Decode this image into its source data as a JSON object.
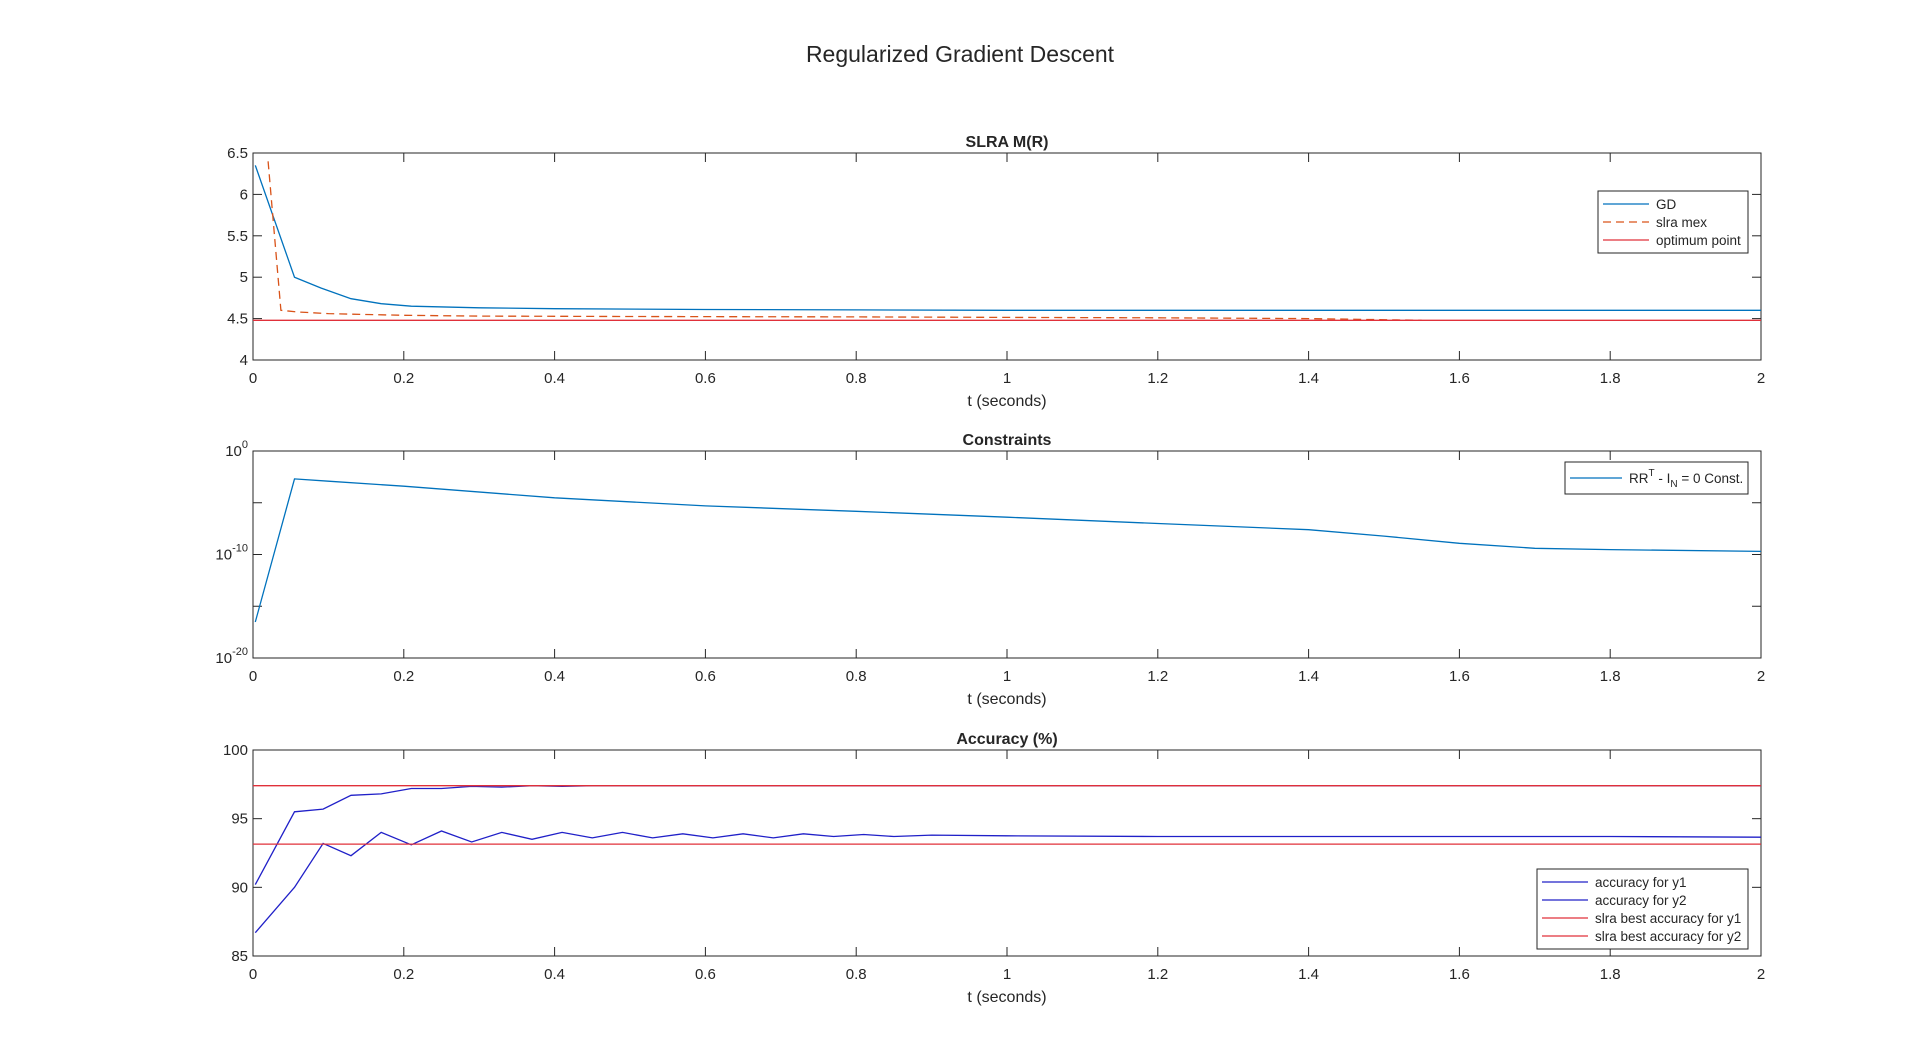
{
  "figure": {
    "suptitle": "Regularized Gradient Descent"
  },
  "chart_data": [
    {
      "type": "line",
      "title": "SLRA M(R)",
      "xlabel": "t (seconds)",
      "ylabel": "",
      "xlim": [
        0,
        2
      ],
      "ylim": [
        4,
        6.5
      ],
      "yscale": "linear",
      "xticks": [
        "0",
        "0.2",
        "0.4",
        "0.6",
        "0.8",
        "1",
        "1.2",
        "1.4",
        "1.6",
        "1.8",
        "2"
      ],
      "yticks": [
        "4",
        "4.5",
        "5",
        "5.5",
        "6",
        "6.5"
      ],
      "legend": {
        "location": "top-right",
        "entries": [
          "GD",
          "slra mex",
          "optimum point"
        ]
      },
      "series": [
        {
          "name": "GD",
          "color": "#0072BD",
          "style": "solid",
          "x": [
            0.003,
            0.055,
            0.09,
            0.13,
            0.17,
            0.21,
            0.3,
            0.4,
            0.6,
            0.8,
            1.0,
            1.2,
            1.4,
            1.6,
            1.8,
            2.0
          ],
          "y": [
            6.35,
            5.0,
            4.87,
            4.74,
            4.68,
            4.65,
            4.63,
            4.62,
            4.61,
            4.605,
            4.6,
            4.6,
            4.6,
            4.6,
            4.6,
            4.6
          ]
        },
        {
          "name": "slra mex",
          "color": "#D95319",
          "style": "dashed",
          "x": [
            0.02,
            0.037,
            0.06,
            0.1,
            0.15,
            0.2,
            0.3,
            0.5,
            0.8,
            1.0,
            1.2,
            1.4,
            1.55
          ],
          "y": [
            6.4,
            4.6,
            4.58,
            4.56,
            4.55,
            4.54,
            4.53,
            4.525,
            4.52,
            4.515,
            4.51,
            4.5,
            4.48
          ]
        },
        {
          "name": "optimum point",
          "color": "#E0303A",
          "style": "solid",
          "x": [
            0,
            2
          ],
          "y": [
            4.48,
            4.48
          ]
        }
      ]
    },
    {
      "type": "line",
      "title": "Constraints",
      "xlabel": "t (seconds)",
      "ylabel": "",
      "xlim": [
        0,
        2
      ],
      "ylim": [
        1e-20,
        1
      ],
      "yscale": "log",
      "xticks": [
        "0",
        "0.2",
        "0.4",
        "0.6",
        "0.8",
        "1",
        "1.2",
        "1.4",
        "1.6",
        "1.8",
        "2"
      ],
      "yticks": [
        {
          "base": "10",
          "exp": "0",
          "value": 1
        },
        {
          "base": "10",
          "exp": "-10",
          "value": 1e-10
        },
        {
          "base": "10",
          "exp": "-20",
          "value": 1e-20
        }
      ],
      "legend": {
        "location": "top-right",
        "entries": [
          {
            "a": "RR",
            "sup": "T",
            "b": " - I",
            "sub": "N",
            "c": " = 0 Const."
          }
        ]
      },
      "series": [
        {
          "name": "RRT - IN = 0 Const.",
          "color": "#0072BD",
          "style": "solid",
          "x": [
            0.003,
            0.055,
            0.1,
            0.2,
            0.4,
            0.6,
            0.8,
            1.0,
            1.2,
            1.4,
            1.5,
            1.6,
            1.7,
            1.8,
            2.0
          ],
          "y": [
            3e-17,
            0.002,
            0.0012,
            0.0004,
            3e-05,
            5e-06,
            1.5e-06,
            4e-07,
            1e-07,
            2.5e-08,
            6e-09,
            1.2e-09,
            4e-10,
            3e-10,
            2e-10
          ]
        }
      ]
    },
    {
      "type": "line",
      "title": "Accuracy (%)",
      "xlabel": "t (seconds)",
      "ylabel": "",
      "xlim": [
        0,
        2
      ],
      "ylim": [
        85,
        100
      ],
      "yscale": "linear",
      "xticks": [
        "0",
        "0.2",
        "0.4",
        "0.6",
        "0.8",
        "1",
        "1.2",
        "1.4",
        "1.6",
        "1.8",
        "2"
      ],
      "yticks": [
        "85",
        "90",
        "95",
        "100"
      ],
      "legend": {
        "location": "bottom-right",
        "entries": [
          "accuracy for y1",
          "accuracy for y2",
          "slra best accuracy for y1",
          "slra best accuracy for y2"
        ]
      },
      "series": [
        {
          "name": "accuracy for y1",
          "color": "#2020C8",
          "style": "solid",
          "x": [
            0.003,
            0.055,
            0.093,
            0.13,
            0.17,
            0.21,
            0.25,
            0.29,
            0.33,
            0.37,
            0.41,
            0.45,
            0.5,
            0.6,
            0.8,
            1.0,
            1.2,
            1.4,
            1.6,
            1.8,
            2.0
          ],
          "y": [
            90.2,
            95.5,
            95.7,
            96.7,
            96.8,
            97.2,
            97.2,
            97.35,
            97.3,
            97.4,
            97.35,
            97.4,
            97.4,
            97.4,
            97.4,
            97.4,
            97.4,
            97.4,
            97.4,
            97.4,
            97.4
          ]
        },
        {
          "name": "accuracy for y2",
          "color": "#2020C8",
          "style": "solid",
          "x": [
            0.003,
            0.055,
            0.093,
            0.13,
            0.17,
            0.21,
            0.25,
            0.29,
            0.33,
            0.37,
            0.41,
            0.45,
            0.49,
            0.53,
            0.57,
            0.61,
            0.65,
            0.69,
            0.73,
            0.77,
            0.81,
            0.85,
            0.9,
            1.0,
            1.2,
            1.4,
            1.6,
            1.8,
            2.0
          ],
          "y": [
            86.7,
            90.0,
            93.2,
            92.3,
            94.0,
            93.1,
            94.1,
            93.3,
            94.0,
            93.5,
            94.0,
            93.6,
            94.0,
            93.6,
            93.9,
            93.6,
            93.9,
            93.6,
            93.9,
            93.7,
            93.85,
            93.7,
            93.8,
            93.75,
            93.7,
            93.7,
            93.7,
            93.7,
            93.65
          ]
        },
        {
          "name": "slra best accuracy for y1",
          "color": "#E0303A",
          "style": "solid",
          "x": [
            0,
            2
          ],
          "y": [
            97.4,
            97.4
          ]
        },
        {
          "name": "slra best accuracy for y2",
          "color": "#E0303A",
          "style": "solid",
          "x": [
            0,
            2
          ],
          "y": [
            93.15,
            93.15
          ]
        }
      ]
    }
  ]
}
